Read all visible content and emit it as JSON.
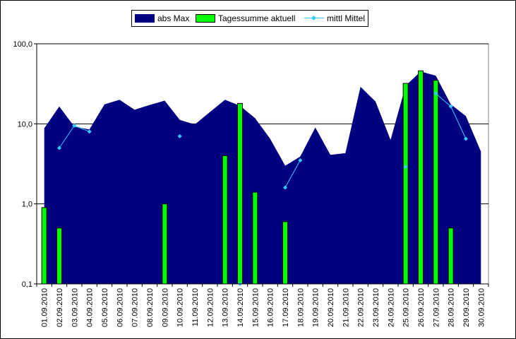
{
  "chart_data": {
    "type": "bar",
    "y_scale": "log",
    "ylim": [
      0.1,
      100
    ],
    "yticks": [
      0.1,
      1,
      10,
      100
    ],
    "ytick_labels": [
      "0,1",
      "1,0",
      "10,0",
      "100,0"
    ],
    "grid": "horizontal",
    "legend_position": "top",
    "categories": [
      "01.09.2010",
      "02.09.2010",
      "03.09.2010",
      "04.09.2010",
      "05.09.2010",
      "06.09.2010",
      "07.09.2010",
      "08.09.2010",
      "09.09.2010",
      "10.09.2010",
      "11.09.2010",
      "12.09.2010",
      "13.09.2010",
      "14.09.2010",
      "15.09.2010",
      "16.09.2010",
      "17.09.2010",
      "18.09.2010",
      "19.09.2010",
      "20.09.2010",
      "21.09.2010",
      "22.09.2010",
      "23.09.2010",
      "24.09.2010",
      "25.09.2010",
      "26.09.2010",
      "27.09.2010",
      "28.09.2010",
      "29.09.2010",
      "30.09.2010"
    ],
    "series": [
      {
        "name": "abs Max",
        "kind": "area",
        "color": "#000080",
        "values": [
          8.8,
          16.5,
          9.2,
          8.5,
          17.5,
          20,
          15,
          17.2,
          19.5,
          11.2,
          9.8,
          14,
          20,
          16.8,
          11.8,
          6.5,
          3.0,
          3.9,
          9.0,
          4.1,
          4.3,
          29,
          19,
          6.3,
          30,
          45,
          40,
          17.5,
          12.5,
          4.5
        ]
      },
      {
        "name": "Tagessumme aktuell",
        "kind": "bar",
        "color": "#00ff00",
        "values": [
          0.9,
          0.5,
          null,
          null,
          null,
          null,
          null,
          null,
          1.0,
          null,
          null,
          null,
          4.0,
          18,
          1.4,
          null,
          0.6,
          null,
          null,
          null,
          null,
          null,
          null,
          null,
          32,
          46,
          35,
          0.5,
          null,
          null
        ]
      },
      {
        "name": "mittl Mittel",
        "kind": "line",
        "color": "#33ccff",
        "values": [
          null,
          5.0,
          9.5,
          8.0,
          null,
          null,
          null,
          null,
          null,
          7.0,
          null,
          null,
          null,
          0.1,
          null,
          null,
          1.6,
          3.5,
          null,
          null,
          null,
          null,
          null,
          null,
          2.9,
          null,
          24,
          16.5,
          6.5,
          null
        ]
      }
    ]
  }
}
